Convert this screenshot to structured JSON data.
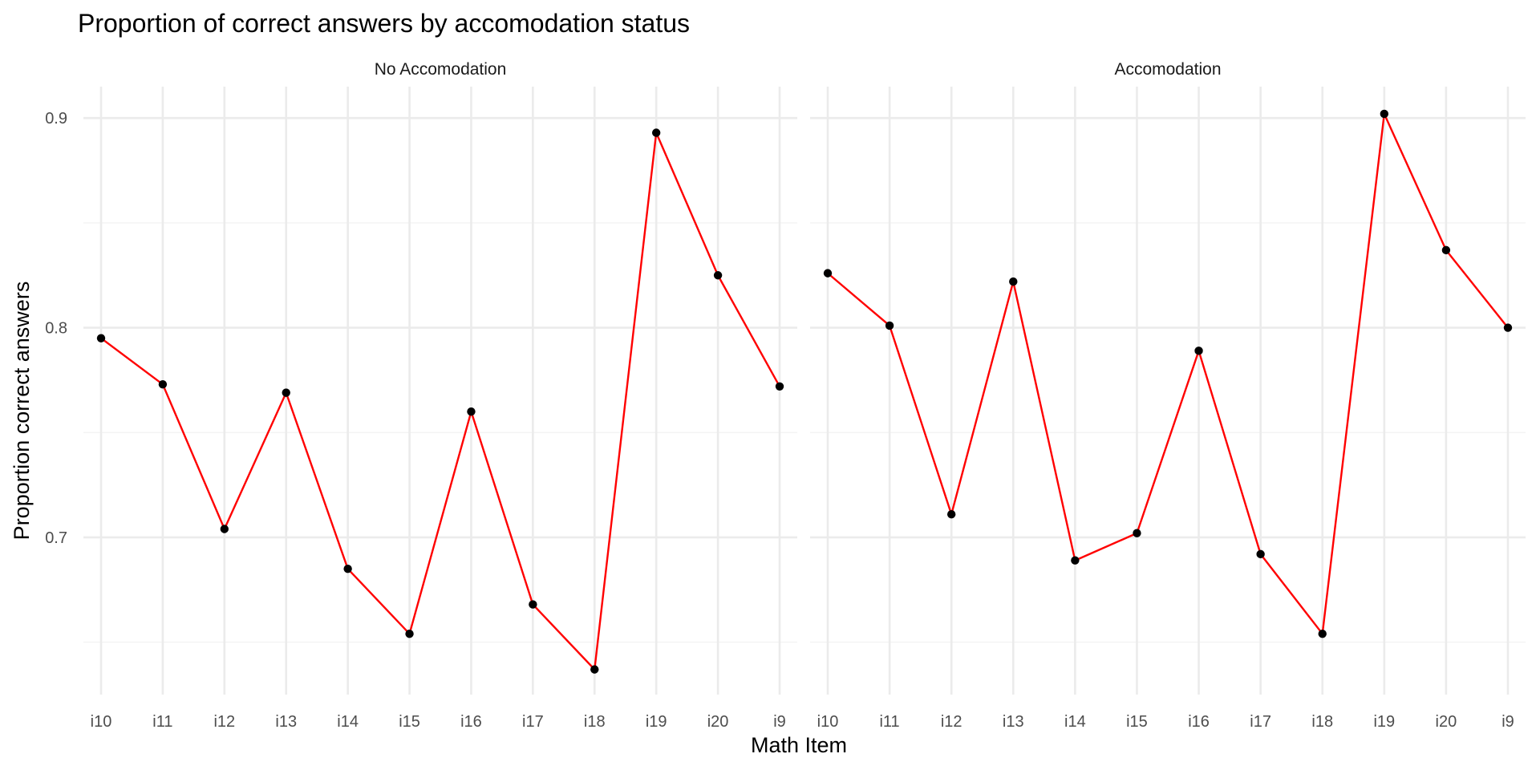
{
  "chart_data": {
    "type": "line",
    "title": "Proportion of correct answers by accomodation status",
    "xlabel": "Math Item",
    "ylabel": "Proportion correct answers",
    "categories": [
      "i10",
      "i11",
      "i12",
      "i13",
      "i14",
      "i15",
      "i16",
      "i17",
      "i18",
      "i19",
      "i20",
      "i9"
    ],
    "ylim": [
      0.625,
      0.915
    ],
    "yticks": [
      0.7,
      0.8,
      0.9
    ],
    "ytick_labels": [
      "0.7",
      "0.8",
      "0.9"
    ],
    "grid": true,
    "legend": "none",
    "line_color": "#ff0000",
    "point_color": "#000000",
    "panels": [
      {
        "name": "No Accomodation",
        "values": [
          0.795,
          0.773,
          0.704,
          0.769,
          0.685,
          0.654,
          0.76,
          0.668,
          0.637,
          0.893,
          0.825,
          0.772
        ]
      },
      {
        "name": "Accomodation",
        "values": [
          0.826,
          0.801,
          0.711,
          0.822,
          0.689,
          0.702,
          0.789,
          0.692,
          0.654,
          0.902,
          0.837,
          0.8
        ]
      }
    ]
  }
}
